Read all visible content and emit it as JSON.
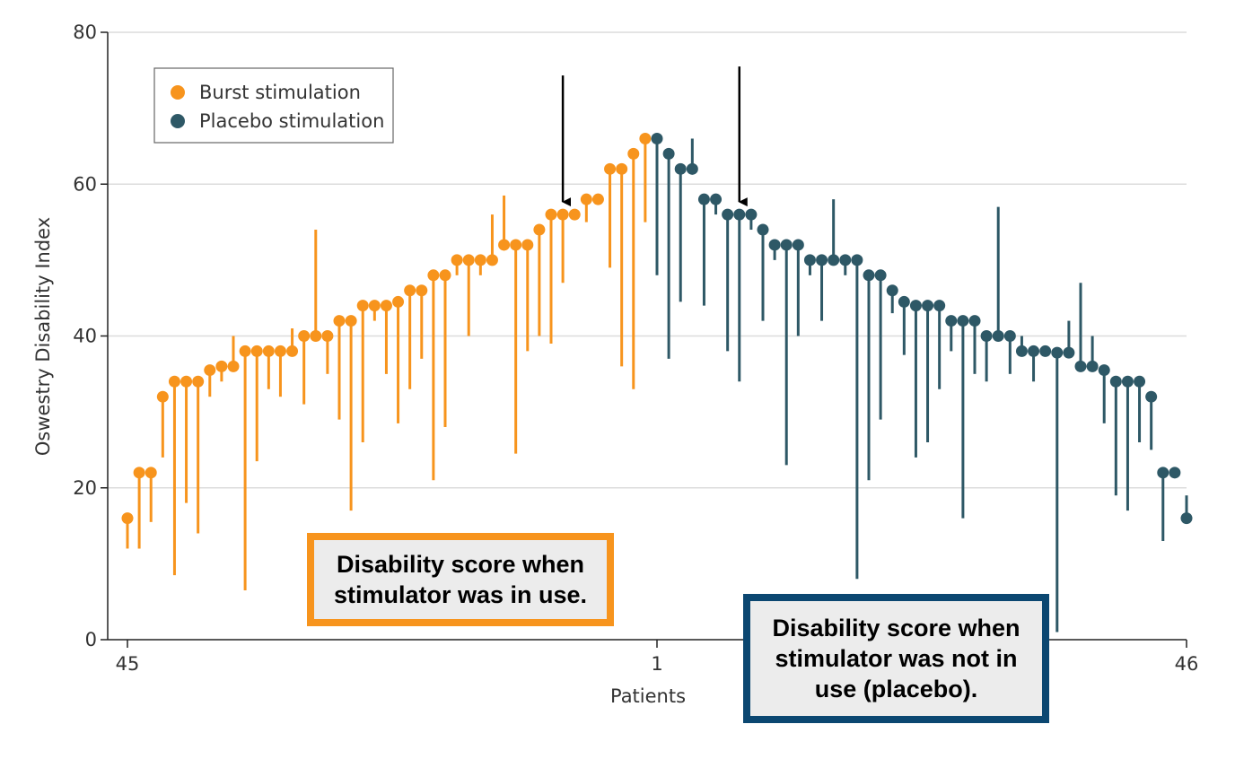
{
  "chart_data": {
    "type": "dot-range",
    "ylabel": "Oswestry Disability Index",
    "xlabel": "Patients",
    "ylim": [
      0,
      80
    ],
    "yticks": [
      0,
      20,
      40,
      60,
      80
    ],
    "xtick_labels": [
      "45",
      "1",
      "46"
    ],
    "legend": [
      {
        "name": "Burst stimulation",
        "color": "#f7941d"
      },
      {
        "name": "Placebo stimulation",
        "color": "#2e5866"
      }
    ],
    "series": [
      {
        "name": "Burst stimulation",
        "color": "#f7941d",
        "points": [
          {
            "value": 16,
            "low": 12
          },
          {
            "value": 22,
            "low": 12
          },
          {
            "value": 22,
            "low": 15.5
          },
          {
            "value": 32,
            "low": 24
          },
          {
            "value": 34,
            "low": 8.5
          },
          {
            "value": 34,
            "low": 18
          },
          {
            "value": 34,
            "low": 14
          },
          {
            "value": 35.5,
            "low": 32
          },
          {
            "value": 36,
            "low": 34
          },
          {
            "value": 36,
            "high": 40
          },
          {
            "value": 38,
            "low": 6.5
          },
          {
            "value": 38,
            "low": 23.5
          },
          {
            "value": 38,
            "low": 33
          },
          {
            "value": 38,
            "low": 32
          },
          {
            "value": 38,
            "high": 41
          },
          {
            "value": 40,
            "low": 31
          },
          {
            "value": 40,
            "high": 54
          },
          {
            "value": 40,
            "low": 35
          },
          {
            "value": 42,
            "low": 29
          },
          {
            "value": 42,
            "low": 17
          },
          {
            "value": 44,
            "low": 26
          },
          {
            "value": 44,
            "low": 42
          },
          {
            "value": 44,
            "low": 35
          },
          {
            "value": 44.5,
            "low": 28.5
          },
          {
            "value": 46,
            "low": 33
          },
          {
            "value": 46,
            "low": 37
          },
          {
            "value": 48,
            "low": 21
          },
          {
            "value": 48,
            "low": 28
          },
          {
            "value": 50,
            "low": 48
          },
          {
            "value": 50,
            "low": 40
          },
          {
            "value": 50,
            "low": 48
          },
          {
            "value": 50,
            "high": 56
          },
          {
            "value": 52,
            "high": 58.5
          },
          {
            "value": 52,
            "low": 24.5
          },
          {
            "value": 52,
            "low": 38
          },
          {
            "value": 54,
            "low": 40
          },
          {
            "value": 56,
            "low": 39
          },
          {
            "value": 56,
            "low": 47
          },
          {
            "value": 56,
            "low": 56
          },
          {
            "value": 58,
            "low": 55
          },
          {
            "value": 58,
            "low": 58
          },
          {
            "value": 62,
            "low": 49
          },
          {
            "value": 62,
            "low": 36
          },
          {
            "value": 64,
            "low": 33
          },
          {
            "value": 66,
            "low": 55
          }
        ]
      },
      {
        "name": "Placebo stimulation",
        "color": "#2e5866",
        "points": [
          {
            "value": 66,
            "low": 48
          },
          {
            "value": 64,
            "low": 37
          },
          {
            "value": 62,
            "low": 44.5
          },
          {
            "value": 62,
            "high": 66
          },
          {
            "value": 58,
            "low": 44
          },
          {
            "value": 58,
            "low": 56
          },
          {
            "value": 56,
            "low": 38
          },
          {
            "value": 56,
            "low": 34
          },
          {
            "value": 56,
            "low": 54
          },
          {
            "value": 54,
            "low": 42
          },
          {
            "value": 52,
            "low": 50
          },
          {
            "value": 52,
            "low": 23
          },
          {
            "value": 52,
            "low": 40
          },
          {
            "value": 50,
            "low": 48
          },
          {
            "value": 50,
            "low": 42
          },
          {
            "value": 50,
            "high": 58
          },
          {
            "value": 50,
            "low": 48
          },
          {
            "value": 50,
            "low": 8
          },
          {
            "value": 48,
            "low": 21
          },
          {
            "value": 48,
            "low": 29
          },
          {
            "value": 46,
            "low": 43
          },
          {
            "value": 44.5,
            "low": 37.5
          },
          {
            "value": 44,
            "low": 24
          },
          {
            "value": 44,
            "low": 26
          },
          {
            "value": 44,
            "low": 33
          },
          {
            "value": 42,
            "low": 38
          },
          {
            "value": 42,
            "low": 16
          },
          {
            "value": 42,
            "low": 35
          },
          {
            "value": 40,
            "low": 34
          },
          {
            "value": 40,
            "high": 57
          },
          {
            "value": 40,
            "low": 35
          },
          {
            "value": 38,
            "high": 40
          },
          {
            "value": 38,
            "low": 34
          },
          {
            "value": 38,
            "low": 38
          },
          {
            "value": 37.8,
            "low": 1
          },
          {
            "value": 37.8,
            "high": 42
          },
          {
            "value": 36,
            "high": 47
          },
          {
            "value": 36,
            "high": 40
          },
          {
            "value": 35.5,
            "low": 28.5
          },
          {
            "value": 34,
            "low": 19
          },
          {
            "value": 34,
            "low": 17
          },
          {
            "value": 34,
            "low": 26
          },
          {
            "value": 32,
            "low": 25
          },
          {
            "value": 22,
            "low": 13
          },
          {
            "value": 22,
            "low": 22
          },
          {
            "value": 16,
            "high": 19
          }
        ]
      }
    ],
    "arrows": [
      {
        "at_series": "Burst stimulation",
        "at_index": 37
      },
      {
        "at_series": "Placebo stimulation",
        "at_index": 7
      }
    ]
  },
  "callouts": {
    "burst": "Disability score when stimulator was in use.",
    "placebo": "Disability score when stimulator was not in use (placebo)."
  }
}
